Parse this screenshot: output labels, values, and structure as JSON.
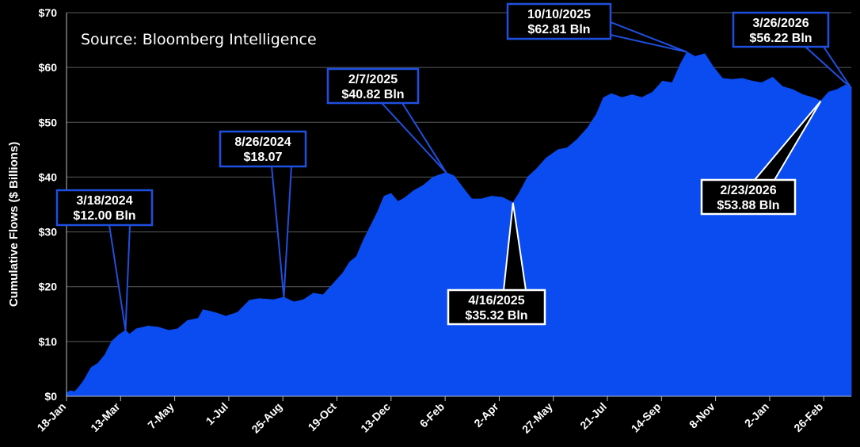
{
  "chart_data": {
    "type": "area",
    "title": "",
    "source": "Source: Bloomberg Intelligence",
    "ylabel": "Cumulative Flows ($ Billions)",
    "xlabel": "",
    "ylim": [
      0,
      70
    ],
    "grid": "horizontal",
    "color": "#0a4cf0",
    "y_ticks": [
      {
        "value": 0,
        "label": "$0"
      },
      {
        "value": 10,
        "label": "$10"
      },
      {
        "value": 20,
        "label": "$20"
      },
      {
        "value": 30,
        "label": "$30"
      },
      {
        "value": 40,
        "label": "$40"
      },
      {
        "value": 50,
        "label": "$50"
      },
      {
        "value": 60,
        "label": "$60"
      },
      {
        "value": 70,
        "label": "$70"
      }
    ],
    "x_ticks": [
      {
        "date": "2024-01-18",
        "label": "18-Jan"
      },
      {
        "date": "2024-03-13",
        "label": "13-Mar"
      },
      {
        "date": "2024-05-07",
        "label": "7-May"
      },
      {
        "date": "2024-07-01",
        "label": "1-Jul"
      },
      {
        "date": "2024-08-25",
        "label": "25-Aug"
      },
      {
        "date": "2024-10-19",
        "label": "19-Oct"
      },
      {
        "date": "2024-12-13",
        "label": "13-Dec"
      },
      {
        "date": "2025-02-06",
        "label": "6-Feb"
      },
      {
        "date": "2025-04-02",
        "label": "2-Apr"
      },
      {
        "date": "2025-05-27",
        "label": "27-May"
      },
      {
        "date": "2025-07-21",
        "label": "21-Jul"
      },
      {
        "date": "2025-09-14",
        "label": "14-Sep"
      },
      {
        "date": "2025-11-08",
        "label": "8-Nov"
      },
      {
        "date": "2026-01-02",
        "label": "2-Jan"
      },
      {
        "date": "2026-02-26",
        "label": "26-Feb"
      }
    ],
    "x_range": [
      "2024-01-18",
      "2026-03-26"
    ],
    "series": [
      {
        "values": [
          [
            "2024-01-18",
            0.6
          ],
          [
            "2024-01-22",
            1.0
          ],
          [
            "2024-01-26",
            0.8
          ],
          [
            "2024-01-30",
            1.5
          ],
          [
            "2024-02-05",
            3.0
          ],
          [
            "2024-02-12",
            5.2
          ],
          [
            "2024-02-19",
            6.0
          ],
          [
            "2024-02-26",
            7.5
          ],
          [
            "2024-03-04",
            10.0
          ],
          [
            "2024-03-11",
            11.2
          ],
          [
            "2024-03-18",
            12.0
          ],
          [
            "2024-03-22",
            11.3
          ],
          [
            "2024-03-29",
            12.3
          ],
          [
            "2024-04-10",
            12.8
          ],
          [
            "2024-04-20",
            12.6
          ],
          [
            "2024-05-01",
            12.0
          ],
          [
            "2024-05-10",
            12.3
          ],
          [
            "2024-05-20",
            13.8
          ],
          [
            "2024-05-31",
            14.2
          ],
          [
            "2024-06-05",
            15.8
          ],
          [
            "2024-06-12",
            15.5
          ],
          [
            "2024-06-20",
            15.1
          ],
          [
            "2024-06-28",
            14.6
          ],
          [
            "2024-07-10",
            15.3
          ],
          [
            "2024-07-22",
            17.5
          ],
          [
            "2024-08-01",
            17.8
          ],
          [
            "2024-08-15",
            17.6
          ],
          [
            "2024-08-26",
            18.07
          ],
          [
            "2024-09-05",
            17.2
          ],
          [
            "2024-09-15",
            17.6
          ],
          [
            "2024-09-25",
            18.8
          ],
          [
            "2024-10-05",
            18.5
          ],
          [
            "2024-10-15",
            20.5
          ],
          [
            "2024-10-25",
            22.5
          ],
          [
            "2024-11-01",
            24.5
          ],
          [
            "2024-11-08",
            25.5
          ],
          [
            "2024-11-15",
            28.5
          ],
          [
            "2024-11-22",
            31.0
          ],
          [
            "2024-11-29",
            33.5
          ],
          [
            "2024-12-06",
            36.5
          ],
          [
            "2024-12-13",
            37.0
          ],
          [
            "2024-12-20",
            35.5
          ],
          [
            "2024-12-27",
            36.2
          ],
          [
            "2025-01-05",
            37.5
          ],
          [
            "2025-01-15",
            38.5
          ],
          [
            "2025-01-25",
            40.0
          ],
          [
            "2025-02-07",
            40.82
          ],
          [
            "2025-02-15",
            40.2
          ],
          [
            "2025-02-25",
            37.8
          ],
          [
            "2025-03-05",
            36.0
          ],
          [
            "2025-03-15",
            36.0
          ],
          [
            "2025-03-25",
            36.5
          ],
          [
            "2025-04-05",
            36.3
          ],
          [
            "2025-04-16",
            35.32
          ],
          [
            "2025-04-22",
            37.0
          ],
          [
            "2025-05-01",
            40.0
          ],
          [
            "2025-05-10",
            41.5
          ],
          [
            "2025-05-20",
            43.5
          ],
          [
            "2025-06-01",
            45.0
          ],
          [
            "2025-06-10",
            45.3
          ],
          [
            "2025-06-20",
            46.8
          ],
          [
            "2025-07-01",
            49.0
          ],
          [
            "2025-07-10",
            51.5
          ],
          [
            "2025-07-17",
            54.5
          ],
          [
            "2025-07-25",
            55.2
          ],
          [
            "2025-08-05",
            54.5
          ],
          [
            "2025-08-15",
            55.0
          ],
          [
            "2025-08-25",
            54.5
          ],
          [
            "2025-09-05",
            55.5
          ],
          [
            "2025-09-15",
            57.5
          ],
          [
            "2025-09-25",
            57.2
          ],
          [
            "2025-10-03",
            60.5
          ],
          [
            "2025-10-10",
            62.81
          ],
          [
            "2025-10-18",
            62.0
          ],
          [
            "2025-10-28",
            62.5
          ],
          [
            "2025-11-06",
            60.0
          ],
          [
            "2025-11-15",
            58.0
          ],
          [
            "2025-11-25",
            57.8
          ],
          [
            "2025-12-05",
            58.0
          ],
          [
            "2025-12-15",
            57.5
          ],
          [
            "2025-12-25",
            57.2
          ],
          [
            "2026-01-05",
            58.2
          ],
          [
            "2026-01-15",
            56.5
          ],
          [
            "2026-01-25",
            56.0
          ],
          [
            "2026-02-05",
            55.0
          ],
          [
            "2026-02-15",
            54.5
          ],
          [
            "2026-02-23",
            53.88
          ],
          [
            "2026-03-03",
            55.5
          ],
          [
            "2026-03-12",
            56.0
          ],
          [
            "2026-03-20",
            56.8
          ],
          [
            "2026-03-26",
            56.22
          ]
        ]
      }
    ],
    "annotations": [
      {
        "date": "2024-03-18",
        "value": 12.0,
        "label_date": "3/18/2024",
        "label_value": "$12.00 Bln",
        "style": "blue"
      },
      {
        "date": "2024-08-26",
        "value": 18.07,
        "label_date": "8/26/2024",
        "label_value": "$18.07",
        "style": "blue"
      },
      {
        "date": "2025-02-07",
        "value": 40.82,
        "label_date": "2/7/2025",
        "label_value": "$40.82 Bln",
        "style": "blue"
      },
      {
        "date": "2025-04-16",
        "value": 35.32,
        "label_date": "4/16/2025",
        "label_value": "$35.32 Bln",
        "style": "white"
      },
      {
        "date": "2025-10-10",
        "value": 62.81,
        "label_date": "10/10/2025",
        "label_value": "$62.81 Bln",
        "style": "blue"
      },
      {
        "date": "2026-02-23",
        "value": 53.88,
        "label_date": "2/23/2026",
        "label_value": "$53.88 Bln",
        "style": "white"
      },
      {
        "date": "2026-03-26",
        "value": 56.22,
        "label_date": "3/26/2026",
        "label_value": "$56.22 Bln",
        "style": "blue"
      }
    ]
  }
}
